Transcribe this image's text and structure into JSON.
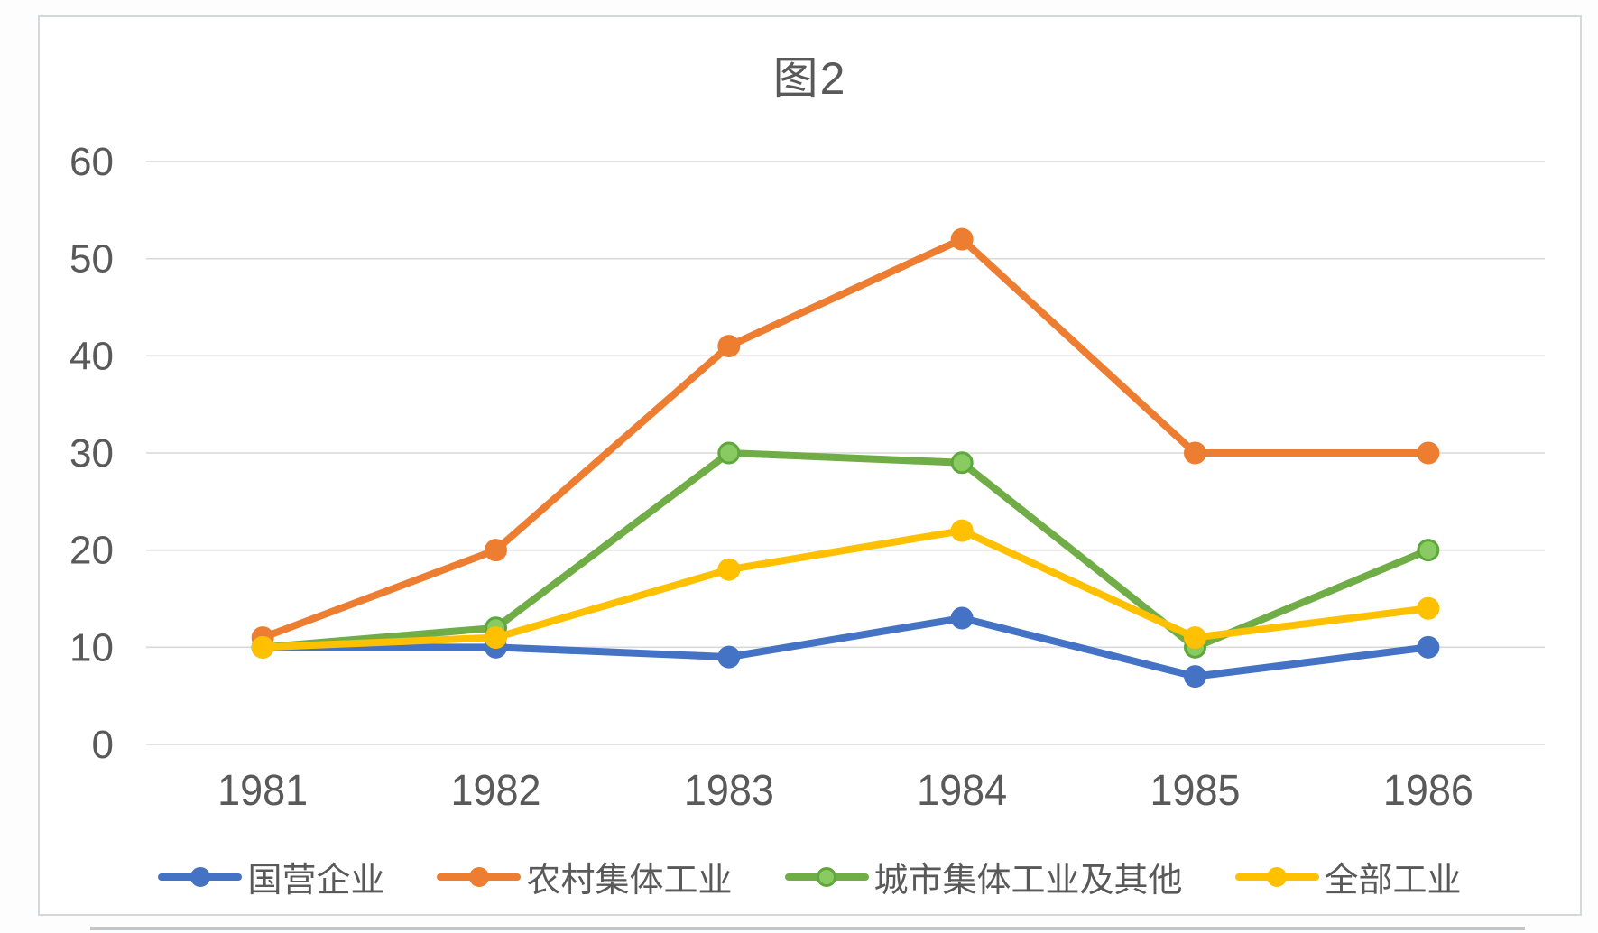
{
  "chart_data": {
    "type": "line",
    "title": "图2",
    "x": [
      "1981",
      "1982",
      "1983",
      "1984",
      "1985",
      "1986"
    ],
    "series": [
      {
        "name": "国营企业",
        "color": "#4472C4",
        "values": [
          10,
          10,
          9,
          13,
          7,
          10
        ]
      },
      {
        "name": "农村集体工业",
        "color": "#ED7D31",
        "values": [
          11,
          20,
          41,
          52,
          30,
          30
        ]
      },
      {
        "name": "城市集体工业及其他",
        "color": "#70AD47",
        "marker_fill": "#8ACA63",
        "marker_stroke": "#5FA73C",
        "values": [
          10,
          12,
          30,
          29,
          10,
          20
        ]
      },
      {
        "name": "全部工业",
        "color": "#FFC000",
        "values": [
          10,
          11,
          18,
          22,
          11,
          14
        ]
      }
    ],
    "ylim": [
      0,
      60
    ],
    "yticks": [
      0,
      10,
      20,
      30,
      40,
      50,
      60
    ],
    "grid": true,
    "legend_position": "bottom",
    "axis_label_color": "#595959",
    "gridline_color": "#d9d9d9"
  }
}
